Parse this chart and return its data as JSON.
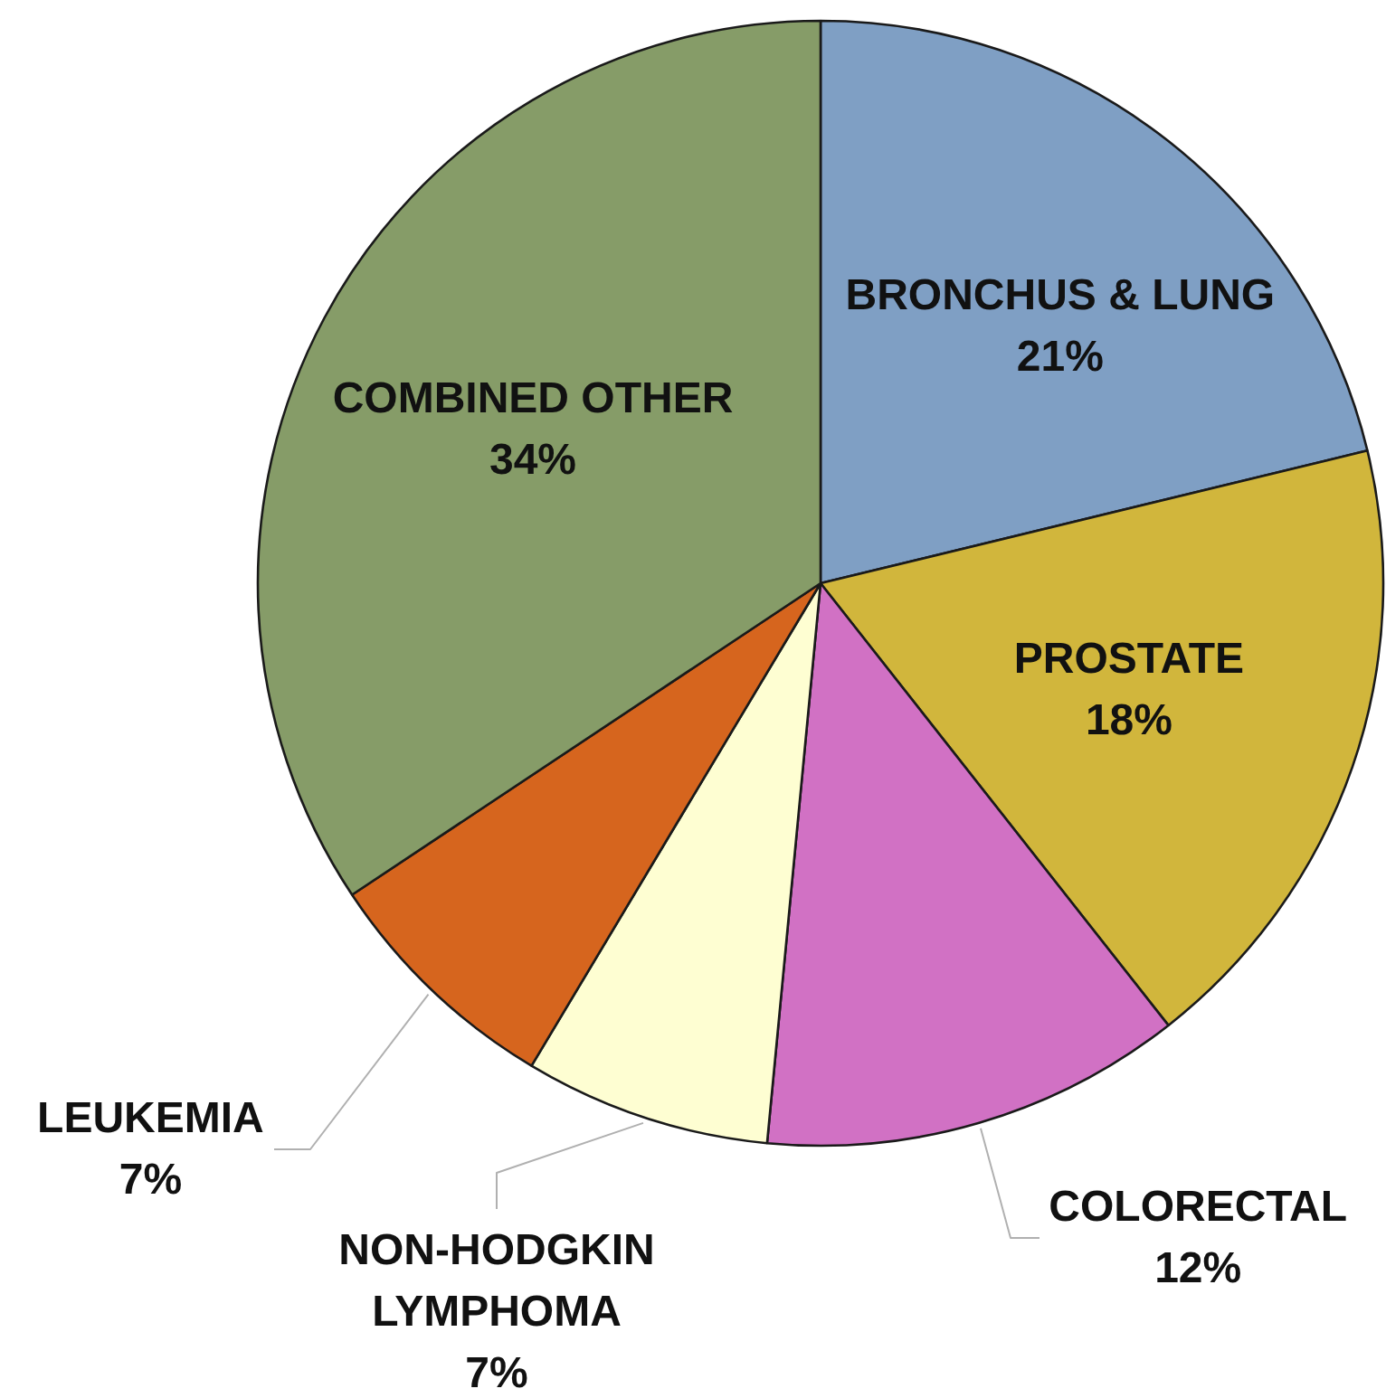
{
  "chart_data": {
    "type": "pie",
    "categories": [
      "BRONCHUS & LUNG",
      "PROSTATE",
      "COLORECTAL",
      "NON-HODGKIN\nLYMPHOMA",
      "LEUKEMIA",
      "COMBINED OTHER"
    ],
    "values": [
      21,
      18,
      12,
      7,
      7,
      34
    ],
    "colors": [
      "#7f9fc4",
      "#d1b63c",
      "#d171c4",
      "#fefed2",
      "#d6651e",
      "#869c68"
    ],
    "value_labels": [
      "21%",
      "18%",
      "12%",
      "7%",
      "7%",
      "34%"
    ]
  }
}
